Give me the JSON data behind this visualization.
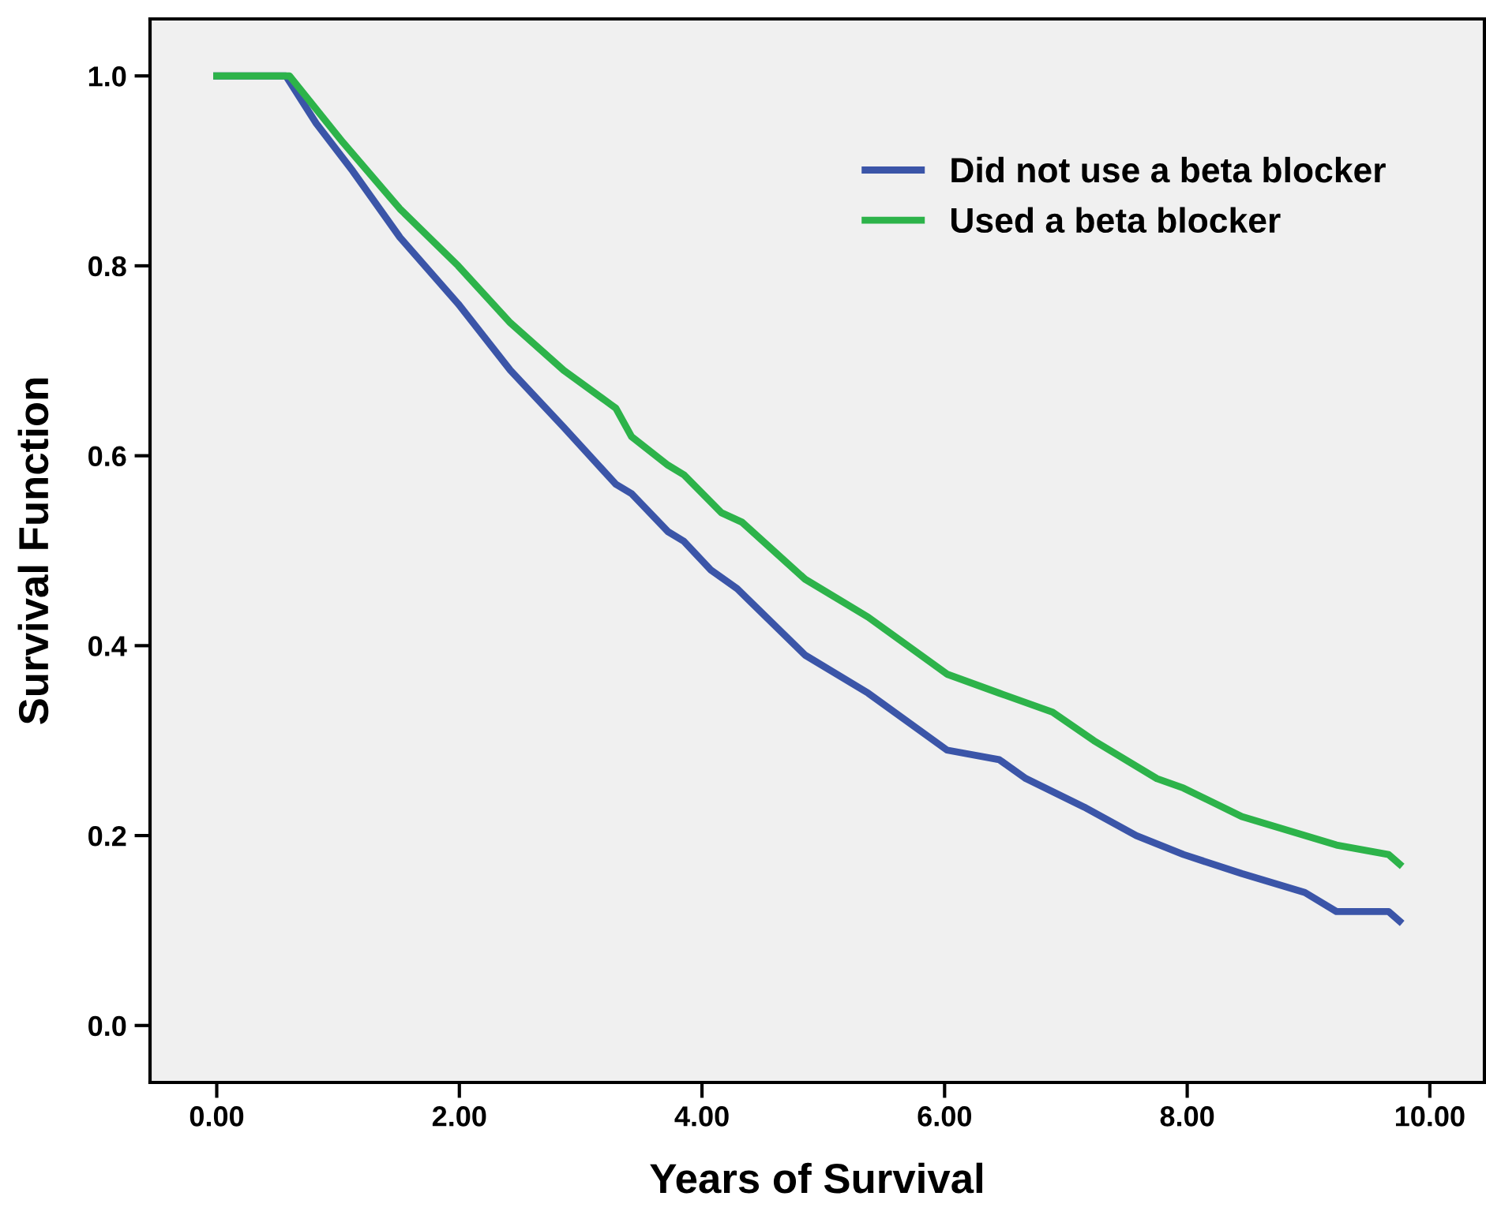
{
  "chart_data": {
    "type": "line",
    "xlabel": "Years of Survival",
    "ylabel": "Survival Function",
    "xlim": [
      -0.55,
      10.45
    ],
    "ylim": [
      -0.06,
      1.06
    ],
    "xticks": [
      {
        "value": 0,
        "label": "0.00"
      },
      {
        "value": 2,
        "label": "2.00"
      },
      {
        "value": 4,
        "label": "4.00"
      },
      {
        "value": 6,
        "label": "6.00"
      },
      {
        "value": 8,
        "label": "8.00"
      },
      {
        "value": 10,
        "label": "10.00"
      }
    ],
    "yticks": [
      {
        "value": 0,
        "label": "0.0"
      },
      {
        "value": 0.2,
        "label": "0.2"
      },
      {
        "value": 0.4,
        "label": "0.4"
      },
      {
        "value": 0.6,
        "label": "0.6"
      },
      {
        "value": 0.8,
        "label": "0.8"
      },
      {
        "value": 1,
        "label": "1.0"
      }
    ],
    "grid": false,
    "legend": "top right",
    "marker": "none",
    "line_style": "solid",
    "series": [
      {
        "name": "Did not use a beta blocker",
        "color": "#3b55a8",
        "x": [
          0,
          0.57,
          0.82,
          1.12,
          1.51,
          1.99,
          2.42,
          2.86,
          3.29,
          3.42,
          3.72,
          3.85,
          4.07,
          4.29,
          4.85,
          5.37,
          6.02,
          6.45,
          6.67,
          7.15,
          7.58,
          7.97,
          8.45,
          8.97,
          9.23,
          9.66,
          9.75
        ],
        "values": [
          1,
          1,
          0.95,
          0.9,
          0.83,
          0.76,
          0.69,
          0.63,
          0.57,
          0.56,
          0.52,
          0.51,
          0.48,
          0.46,
          0.39,
          0.35,
          0.29,
          0.28,
          0.26,
          0.23,
          0.2,
          0.18,
          0.16,
          0.14,
          0.12,
          0.12,
          0.11
        ]
      },
      {
        "name": "Used a beta blocker",
        "color": "#2db34a",
        "x": [
          0,
          0.6,
          1.04,
          1.51,
          1.99,
          2.42,
          2.86,
          3.29,
          3.42,
          3.72,
          3.85,
          4.16,
          4.33,
          4.85,
          5.37,
          6.02,
          6.45,
          6.89,
          7.23,
          7.75,
          7.97,
          8.45,
          8.97,
          9.23,
          9.66,
          9.75
        ],
        "values": [
          1,
          1,
          0.93,
          0.86,
          0.8,
          0.74,
          0.69,
          0.65,
          0.62,
          0.59,
          0.58,
          0.54,
          0.53,
          0.47,
          0.43,
          0.37,
          0.35,
          0.33,
          0.3,
          0.26,
          0.25,
          0.22,
          0.2,
          0.19,
          0.18,
          0.17
        ]
      }
    ]
  }
}
